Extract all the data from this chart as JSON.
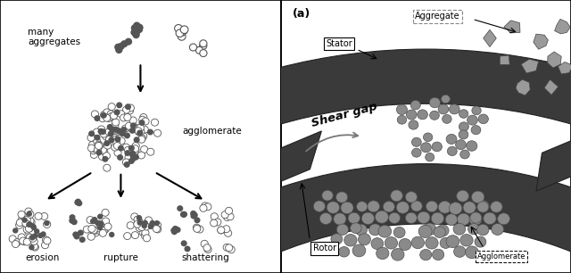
{
  "fig_width": 6.4,
  "fig_height": 3.06,
  "dpi": 100,
  "bg_color": "#ffffff",
  "border_color": "#000000",
  "left_panel": {
    "label_many": "many\naggregates",
    "label_agglomerate": "agglomerate",
    "label_erosion": "erosion",
    "label_rupture": "rupture",
    "label_shattering": "shattering",
    "dark_color": "#555555"
  },
  "right_panel": {
    "label_a": "(a)",
    "label_stator": "Stator",
    "label_aggregate": "Aggregate",
    "label_shear_gap": "Shear gap",
    "label_rotor": "Rotor",
    "stator_color": "#3a3a3a",
    "particle_color": "#888888",
    "bg_color": "#f5f5f5"
  }
}
